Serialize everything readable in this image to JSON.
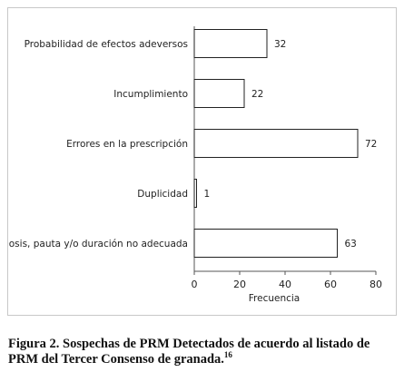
{
  "chart_data": {
    "type": "bar",
    "orientation": "horizontal",
    "categories": [
      "Probabilidad de efectos adeversos",
      "Incumplimiento",
      "Errores en la prescripción",
      "Duplicidad",
      "Dosis, pauta y/o duración no adecuada"
    ],
    "values": [
      32,
      22,
      72,
      1,
      63
    ],
    "value_labels": [
      "32",
      "22",
      "72",
      "1",
      "63"
    ],
    "xlabel": "Frecuencia",
    "xlim": [
      0,
      80
    ],
    "xticks": [
      "0",
      "20",
      "40",
      "60",
      "80"
    ],
    "grid": false,
    "bar_fill": "#ffffff",
    "bar_stroke": "#222222"
  },
  "caption": {
    "line1": "Figura 2. Sospechas de PRM Detectados de acuerdo al listado de",
    "line2": "PRM del Tercer Consenso de granada.",
    "ref": "16"
  }
}
